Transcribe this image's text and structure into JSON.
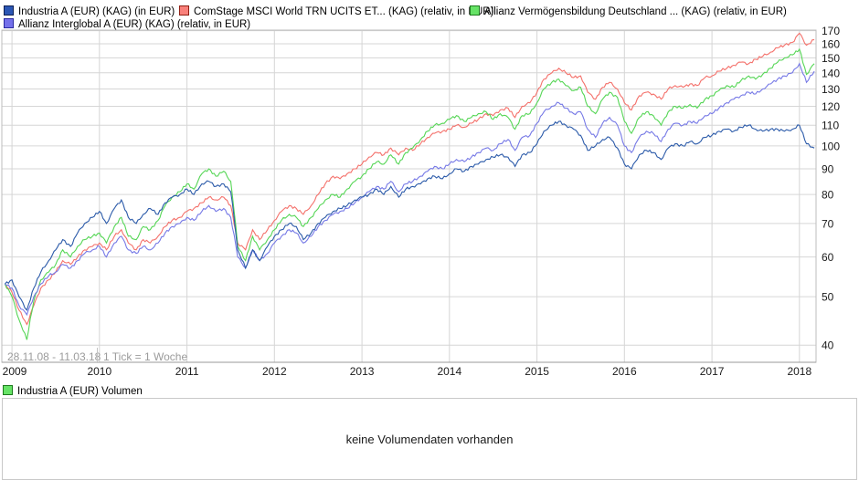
{
  "legend": {
    "items": [
      {
        "label": "Industria A (EUR) (KAG) (in EUR)",
        "color": "#2b56b4",
        "border": "#0d1f52"
      },
      {
        "label": "ComStage MSCI World TRN UCITS ET... (KAG) (relativ, in EUR)",
        "color": "#f9807a",
        "border": "#8f1d12"
      },
      {
        "label": "Allianz Vermögensbildung Deutschland ... (KAG) (relativ, in EUR)",
        "color": "#66e366",
        "border": "#1d7a1d"
      },
      {
        "label": "Allianz Interglobal A (EUR) (KAG) (relativ, in EUR)",
        "color": "#7470ea",
        "border": "#2a2aa0"
      }
    ]
  },
  "info": {
    "date_range": "28.11.08 - 11.03.18",
    "tick_note": "1 Tick = 1 Woche"
  },
  "chart_data": {
    "type": "line",
    "title": "",
    "y_scale": "log",
    "ylim": [
      37,
      172
    ],
    "x_range": [
      2008.905,
      2018.19
    ],
    "grid": true,
    "legend_position": "top",
    "y_ticks": [
      40,
      50,
      60,
      70,
      80,
      90,
      100,
      110,
      120,
      130,
      140,
      150,
      160,
      170
    ],
    "x_ticks": [
      2009,
      2010,
      2011,
      2012,
      2013,
      2014,
      2015,
      2016,
      2017,
      2018
    ],
    "x": [
      2008.92,
      2009.0,
      2009.08,
      2009.17,
      2009.25,
      2009.33,
      2009.42,
      2009.5,
      2009.58,
      2009.67,
      2009.75,
      2009.83,
      2009.92,
      2010.0,
      2010.08,
      2010.17,
      2010.25,
      2010.33,
      2010.42,
      2010.5,
      2010.58,
      2010.67,
      2010.75,
      2010.83,
      2010.92,
      2011.0,
      2011.08,
      2011.17,
      2011.25,
      2011.33,
      2011.42,
      2011.5,
      2011.58,
      2011.67,
      2011.75,
      2011.83,
      2011.92,
      2012.0,
      2012.08,
      2012.17,
      2012.25,
      2012.33,
      2012.42,
      2012.5,
      2012.58,
      2012.67,
      2012.75,
      2012.83,
      2012.92,
      2013.0,
      2013.08,
      2013.17,
      2013.25,
      2013.33,
      2013.42,
      2013.5,
      2013.58,
      2013.67,
      2013.75,
      2013.83,
      2013.92,
      2014.0,
      2014.08,
      2014.17,
      2014.25,
      2014.33,
      2014.42,
      2014.5,
      2014.58,
      2014.67,
      2014.75,
      2014.83,
      2014.92,
      2015.0,
      2015.08,
      2015.17,
      2015.25,
      2015.33,
      2015.42,
      2015.5,
      2015.58,
      2015.67,
      2015.75,
      2015.83,
      2015.92,
      2016.0,
      2016.08,
      2016.17,
      2016.25,
      2016.33,
      2016.42,
      2016.5,
      2016.58,
      2016.67,
      2016.75,
      2016.83,
      2016.92,
      2017.0,
      2017.08,
      2017.17,
      2017.25,
      2017.33,
      2017.42,
      2017.5,
      2017.58,
      2017.67,
      2017.75,
      2017.83,
      2017.92,
      2018.0,
      2018.08,
      2018.17
    ],
    "series": [
      {
        "name": "Industria A (EUR)",
        "color": "#2b5aa9",
        "values": [
          53,
          54,
          50,
          47,
          52,
          56,
          59,
          62,
          65,
          63,
          67,
          70,
          72,
          74,
          70,
          75,
          78,
          72,
          70,
          73,
          75,
          73,
          77,
          79,
          80,
          82,
          80,
          84,
          85,
          83,
          84,
          81,
          62,
          57,
          62,
          59,
          63,
          66,
          68,
          70,
          69,
          65,
          67,
          70,
          72,
          74,
          75,
          76,
          78,
          79,
          80,
          82,
          80,
          83,
          79,
          82,
          83,
          84,
          86,
          87,
          86,
          88,
          90,
          89,
          91,
          92,
          94,
          95,
          96,
          95,
          91,
          96,
          97,
          101,
          107,
          110,
          112,
          110,
          108,
          105,
          98,
          100,
          103,
          104,
          99,
          92,
          90,
          96,
          98,
          97,
          94,
          99,
          101,
          100,
          102,
          101,
          104,
          105,
          107,
          108,
          107,
          109,
          110,
          108,
          107,
          108,
          108,
          107,
          108,
          110,
          101,
          99
        ]
      },
      {
        "name": "ComStage MSCI World TRN UCITS ETF",
        "color": "#f4716b",
        "values": [
          53,
          51,
          47,
          44,
          48,
          52,
          54,
          56,
          59,
          58,
          60,
          62,
          63,
          64,
          62,
          66,
          68,
          64,
          62,
          65,
          64,
          66,
          69,
          71,
          72,
          74,
          75,
          77,
          79,
          78,
          79,
          76,
          64,
          62,
          68,
          65,
          68,
          71,
          74,
          76,
          75,
          73,
          76,
          80,
          84,
          87,
          86,
          88,
          90,
          92,
          95,
          97,
          96,
          99,
          96,
          99,
          98,
          101,
          104,
          106,
          107,
          108,
          110,
          109,
          111,
          113,
          116,
          115,
          118,
          119,
          114,
          120,
          122,
          128,
          136,
          140,
          143,
          140,
          137,
          138,
          128,
          124,
          131,
          134,
          130,
          122,
          118,
          126,
          128,
          127,
          124,
          130,
          132,
          131,
          133,
          132,
          137,
          138,
          141,
          143,
          145,
          147,
          146,
          149,
          151,
          154,
          157,
          159,
          161,
          168,
          159,
          163
        ]
      },
      {
        "name": "Allianz Vermögensbildung Deutschland",
        "color": "#56d656",
        "values": [
          53,
          50,
          45,
          41,
          49,
          54,
          56,
          58,
          62,
          60,
          63,
          65,
          66,
          67,
          64,
          69,
          72,
          66,
          65,
          69,
          68,
          71,
          76,
          79,
          81,
          84,
          82,
          88,
          90,
          87,
          89,
          85,
          63,
          59,
          66,
          62,
          65,
          68,
          71,
          73,
          72,
          69,
          72,
          75,
          78,
          80,
          79,
          82,
          85,
          87,
          90,
          93,
          92,
          96,
          92,
          97,
          99,
          103,
          107,
          110,
          111,
          113,
          115,
          112,
          114,
          116,
          117,
          113,
          116,
          114,
          108,
          115,
          116,
          122,
          130,
          134,
          136,
          132,
          129,
          131,
          120,
          116,
          124,
          128,
          125,
          112,
          106,
          114,
          117,
          115,
          110,
          117,
          120,
          119,
          121,
          119,
          124,
          126,
          129,
          132,
          131,
          135,
          138,
          136,
          139,
          143,
          147,
          150,
          152,
          156,
          139,
          146
        ]
      },
      {
        "name": "Allianz Interglobal A (EUR)",
        "color": "#7679e6",
        "values": [
          53,
          52,
          48,
          46,
          50,
          53,
          55,
          56,
          58,
          57,
          59,
          61,
          62,
          63,
          60,
          64,
          66,
          62,
          61,
          63,
          62,
          64,
          67,
          69,
          70,
          72,
          71,
          74,
          76,
          74,
          75,
          72,
          60,
          57,
          62,
          59,
          61,
          64,
          66,
          68,
          67,
          64,
          66,
          69,
          71,
          73,
          74,
          75,
          77,
          79,
          81,
          83,
          82,
          85,
          81,
          84,
          85,
          87,
          89,
          91,
          90,
          92,
          94,
          93,
          95,
          97,
          99,
          98,
          101,
          103,
          98,
          104,
          105,
          111,
          117,
          120,
          122,
          119,
          116,
          117,
          108,
          104,
          111,
          114,
          110,
          100,
          97,
          104,
          107,
          106,
          102,
          108,
          111,
          110,
          112,
          111,
          115,
          116,
          119,
          122,
          124,
          126,
          128,
          127,
          130,
          133,
          136,
          138,
          140,
          146,
          134,
          141
        ]
      }
    ]
  },
  "volume_panel": {
    "legend_label": "Industria A (EUR) Volumen",
    "legend_color": "#66e366",
    "legend_border": "#1d7a1d",
    "empty_message": "keine Volumendaten vorhanden"
  }
}
